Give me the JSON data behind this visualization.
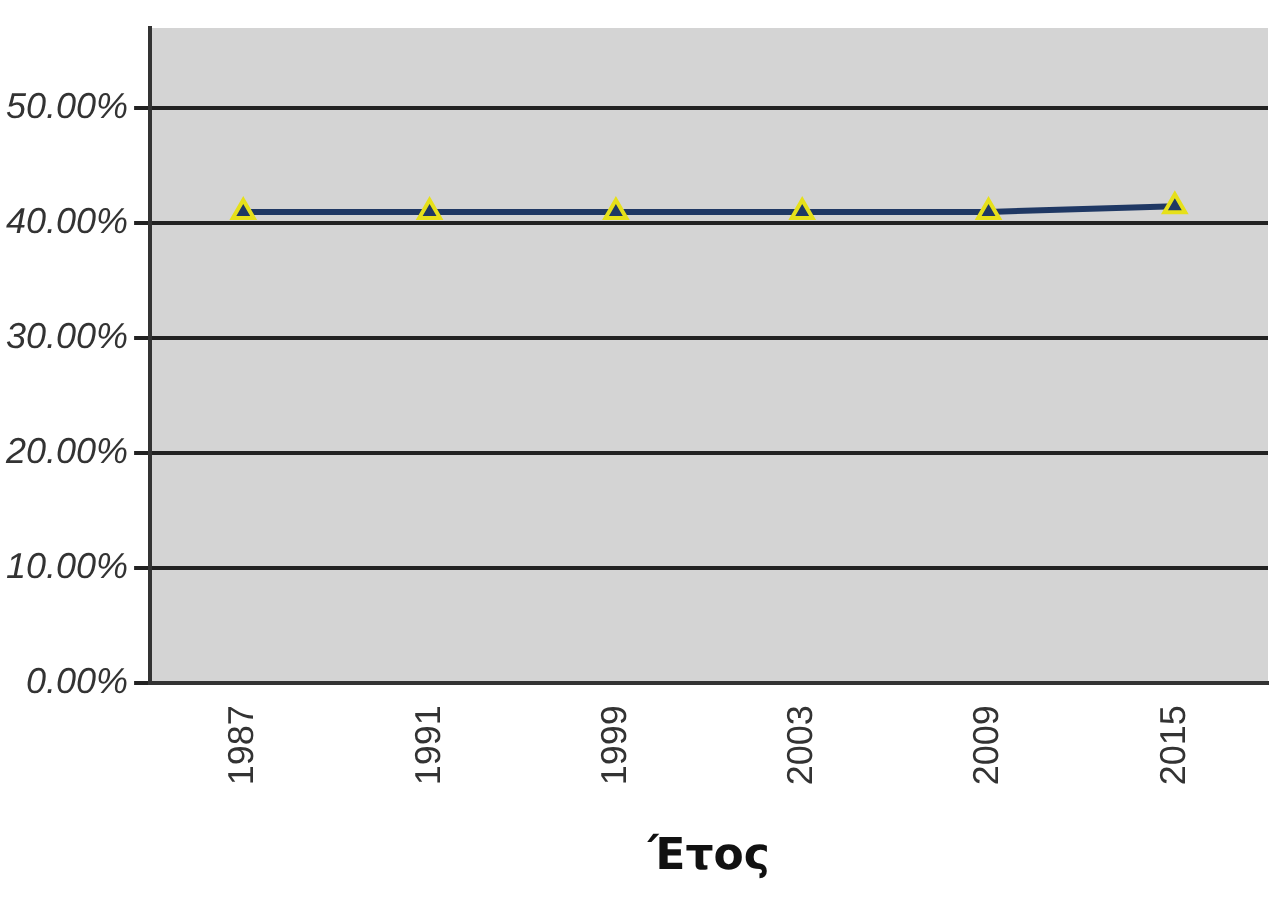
{
  "chart_data": {
    "type": "line",
    "xlabel": "Έτος",
    "categories": [
      "1987",
      "1991",
      "1999",
      "2003",
      "2009",
      "2015"
    ],
    "series": [
      {
        "color": "#1f3864",
        "values": [
          41,
          41,
          41,
          41,
          41,
          41.5
        ]
      }
    ],
    "ylim": [
      0,
      57
    ],
    "yticks": [
      {
        "value": 0,
        "label": "0.00%"
      },
      {
        "value": 10,
        "label": "10.00%"
      },
      {
        "value": 20,
        "label": "20.00%"
      },
      {
        "value": 30,
        "label": "30.00%"
      },
      {
        "value": 40,
        "label": "40.00%"
      },
      {
        "value": 50,
        "label": "50.00%"
      }
    ],
    "grid": "y",
    "legend": false,
    "marker": "triangle",
    "line_style": "solid"
  }
}
